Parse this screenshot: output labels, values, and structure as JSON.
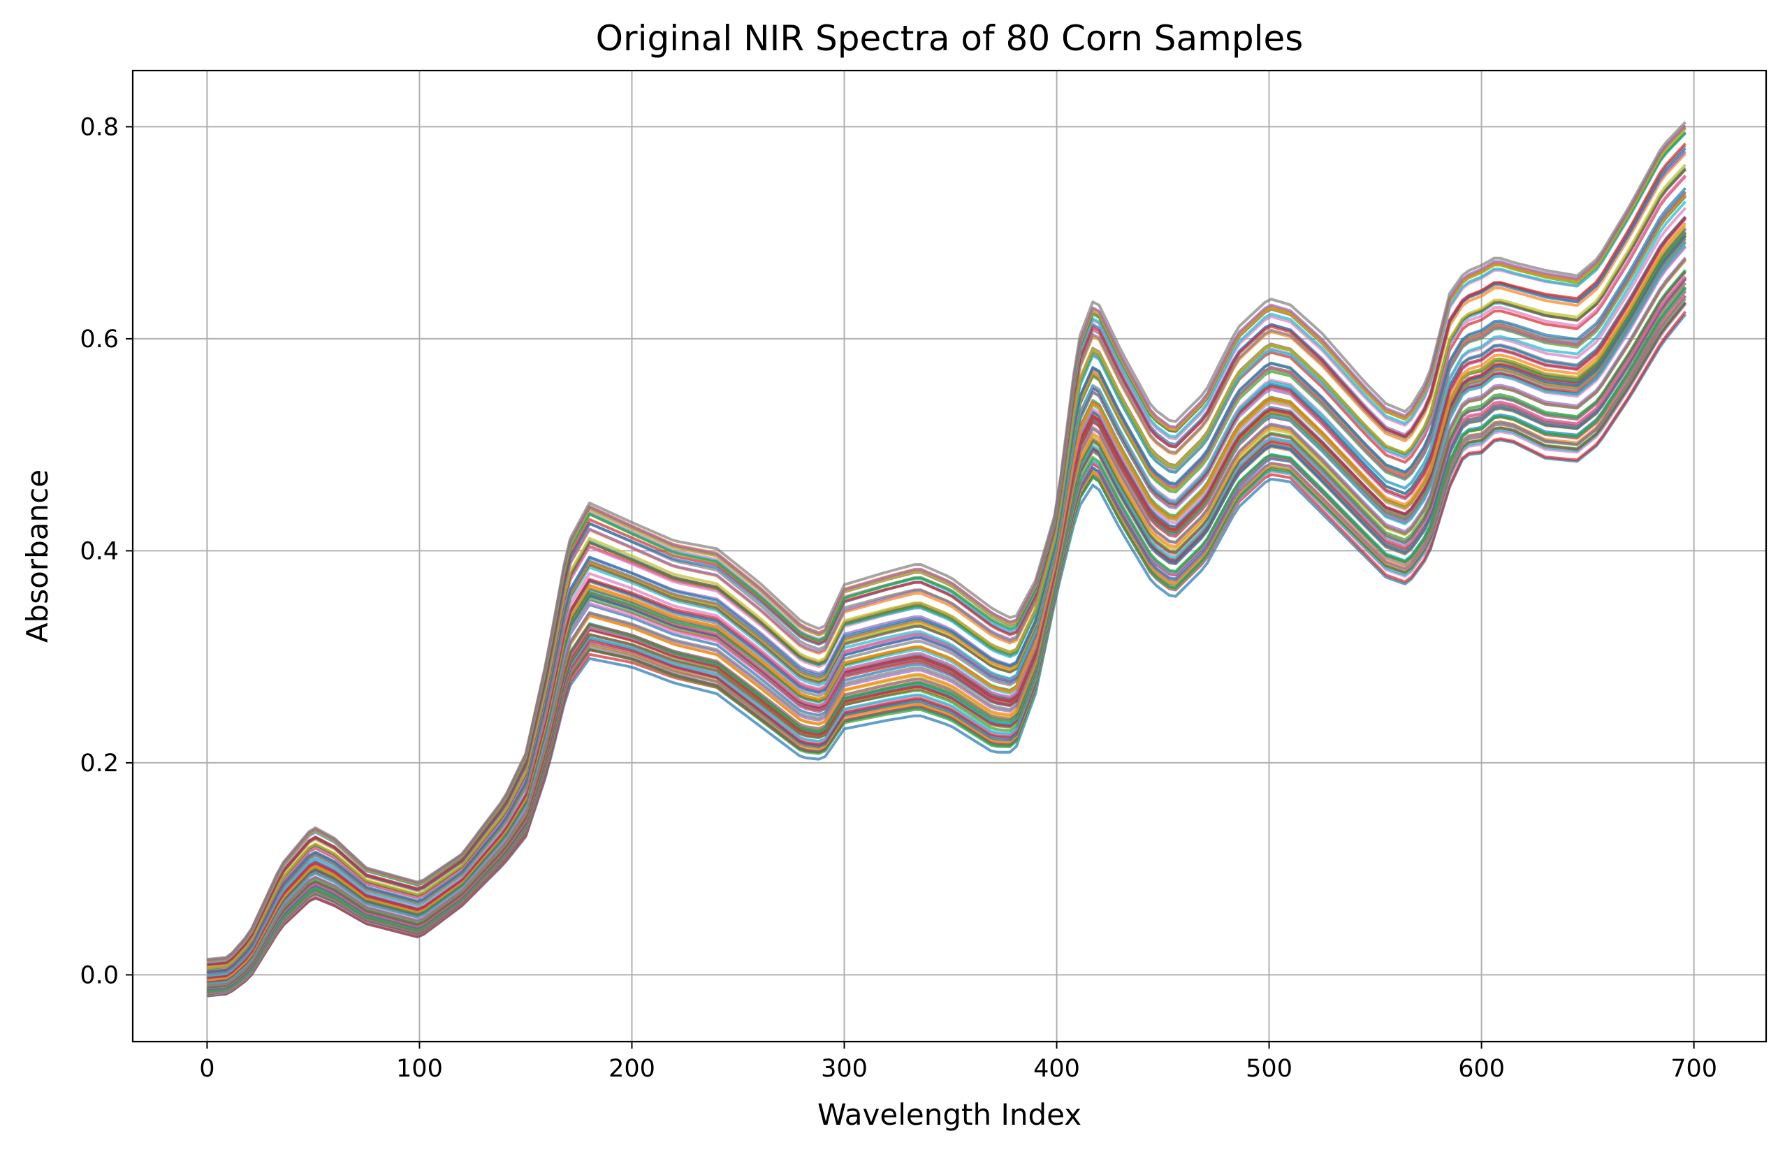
{
  "chart_data": {
    "type": "line",
    "title": "Original NIR Spectra of 80 Corn Samples",
    "xlabel": "Wavelength Index",
    "ylabel": "Absorbance",
    "xlim": [
      -35,
      734
    ],
    "ylim": [
      -0.063,
      0.853
    ],
    "xticks": [
      0,
      100,
      200,
      300,
      400,
      500,
      600,
      700
    ],
    "yticks": [
      0.0,
      0.2,
      0.4,
      0.6,
      0.8
    ],
    "ytick_labels": [
      "0.0",
      "0.2",
      "0.4",
      "0.6",
      "0.8"
    ],
    "grid": true,
    "legend": "none",
    "n_series": 80,
    "x_key": [
      0,
      10,
      20,
      35,
      50,
      60,
      75,
      100,
      120,
      140,
      150,
      160,
      170,
      180,
      200,
      220,
      240,
      260,
      280,
      290,
      300,
      320,
      335,
      350,
      370,
      380,
      390,
      400,
      410,
      418,
      430,
      445,
      455,
      470,
      485,
      500,
      510,
      525,
      545,
      555,
      565,
      575,
      585,
      592,
      600,
      607,
      615,
      630,
      645,
      655,
      670,
      685,
      697
    ],
    "series_low": [
      -0.02,
      -0.018,
      -0.003,
      0.045,
      0.073,
      0.065,
      0.048,
      0.035,
      0.065,
      0.105,
      0.13,
      0.19,
      0.27,
      0.298,
      0.29,
      0.275,
      0.265,
      0.235,
      0.205,
      0.203,
      0.232,
      0.24,
      0.245,
      0.235,
      0.21,
      0.21,
      0.265,
      0.36,
      0.44,
      0.465,
      0.42,
      0.37,
      0.355,
      0.385,
      0.44,
      0.468,
      0.465,
      0.435,
      0.395,
      0.375,
      0.368,
      0.395,
      0.46,
      0.49,
      0.492,
      0.505,
      0.502,
      0.487,
      0.484,
      0.5,
      0.545,
      0.595,
      0.625
    ],
    "series_high": [
      0.015,
      0.017,
      0.04,
      0.105,
      0.141,
      0.13,
      0.102,
      0.088,
      0.115,
      0.168,
      0.21,
      0.3,
      0.41,
      0.447,
      0.428,
      0.41,
      0.402,
      0.37,
      0.333,
      0.325,
      0.368,
      0.38,
      0.388,
      0.375,
      0.345,
      0.335,
      0.372,
      0.44,
      0.598,
      0.64,
      0.59,
      0.535,
      0.52,
      0.55,
      0.61,
      0.638,
      0.632,
      0.605,
      0.56,
      0.54,
      0.532,
      0.565,
      0.645,
      0.665,
      0.672,
      0.68,
      0.675,
      0.668,
      0.663,
      0.68,
      0.73,
      0.785,
      0.81
    ]
  },
  "colors": {
    "series_cycle": [
      "#1f77b4",
      "#ff7f0e",
      "#2ca02c",
      "#d62728",
      "#9467bd",
      "#8c564b",
      "#e377c2",
      "#7f7f7f",
      "#bcbd22",
      "#17becf"
    ],
    "grid": "#b0b0b0",
    "axes": "#000000"
  }
}
